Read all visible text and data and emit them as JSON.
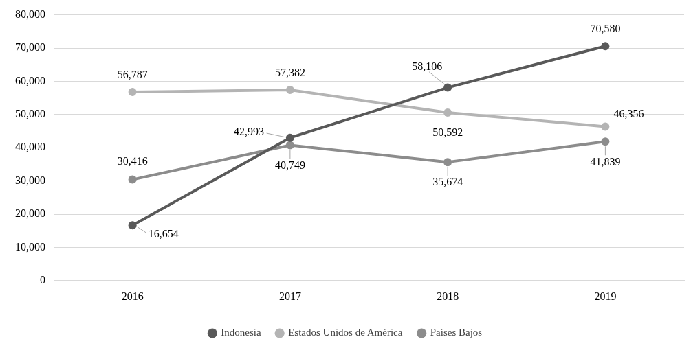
{
  "chart_data": {
    "type": "line",
    "categories": [
      "2016",
      "2017",
      "2018",
      "2019"
    ],
    "series": [
      {
        "name": "Indonesia",
        "color": "#595959",
        "values": [
          16654,
          42993,
          58106,
          70580
        ],
        "value_labels": [
          "16,654",
          "42,993",
          "58,106",
          "70,580"
        ]
      },
      {
        "name": "Estados Unidos de América",
        "color": "#b4b4b4",
        "values": [
          56787,
          57382,
          50592,
          46356
        ],
        "value_labels": [
          "56,787",
          "57,382",
          "50,592",
          "46,356"
        ]
      },
      {
        "name": "Países Bajos",
        "color": "#8c8c8c",
        "values": [
          30416,
          40749,
          35674,
          41839
        ],
        "value_labels": [
          "30,416",
          "40,749",
          "35,674",
          "41,839"
        ]
      }
    ],
    "ylim": [
      0,
      80000
    ],
    "yticks": [
      0,
      {
        "value": 10000,
        "label": "10,000"
      },
      {
        "value": 20000,
        "label": "20,000"
      },
      {
        "value": 30000,
        "label": "30,000"
      },
      {
        "value": 40000,
        "label": "40,000"
      },
      {
        "value": 50000,
        "label": "50,000"
      },
      {
        "value": 60000,
        "label": "60,000"
      },
      {
        "value": 70000,
        "label": "70,000"
      },
      {
        "value": 80000,
        "label": "80,000"
      }
    ],
    "grid": "y",
    "legend": "bottom",
    "marker": "circle",
    "line_style": "solid"
  }
}
